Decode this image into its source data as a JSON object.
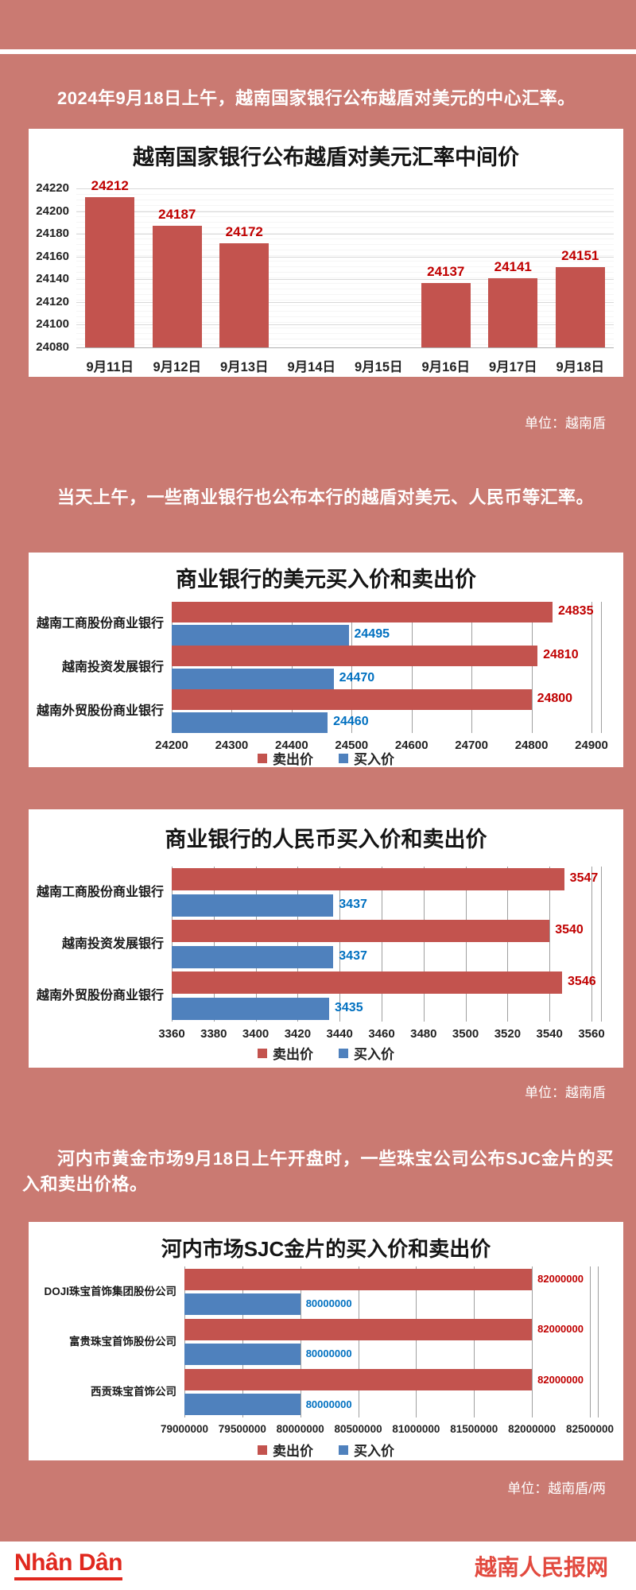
{
  "page": {
    "background_color": "#ca7a72",
    "paragraphs": {
      "intro_central_rate": "2024年9月18日上午，越南国家银行公布越盾对美元的中心汇率。",
      "intro_commercial_banks": "当天上午，一些商业银行也公布本行的越盾对美元、人民币等汇率。",
      "intro_gold": "河内市黄金市场9月18日上午开盘时，一些珠宝公司公布SJC金片的买入和卖出价格。"
    },
    "unit_notes": {
      "after_chart1": "单位：越南盾",
      "after_chart3": "单位：越南盾",
      "after_chart4": "单位：越南盾/两"
    }
  },
  "footer": {
    "logo_text": "Nhân Dân",
    "site_name": "越南人民报网",
    "logo_color": "#e0281e",
    "site_name_color": "#e24a3f"
  },
  "chart_data": [
    {
      "type": "bar",
      "title": "越南国家银行公布越盾对美元汇率中间价",
      "categories": [
        "9月11日",
        "9月12日",
        "9月13日",
        "9月14日",
        "9月15日",
        "9月16日",
        "9月17日",
        "9月18日"
      ],
      "values": [
        24212,
        24187,
        24172,
        null,
        null,
        24137,
        24141,
        24151
      ],
      "ylim": [
        24080,
        24220
      ],
      "ytick_step": 20,
      "bar_color": "#c3534e",
      "label_color": "#c00000",
      "grid": true,
      "unit": "越南盾"
    },
    {
      "type": "bar-horizontal",
      "title": "商业银行的美元买入价和卖出价",
      "categories": [
        "越南工商股份商业银行",
        "越南投资发展银行",
        "越南外贸股份商业银行"
      ],
      "series": [
        {
          "name": "卖出价",
          "color": "#c3534e",
          "label_color": "#c00000",
          "values": [
            24835,
            24810,
            24800
          ]
        },
        {
          "name": "买入价",
          "color": "#4f81bd",
          "label_color": "#0070c0",
          "values": [
            24495,
            24470,
            24460
          ]
        }
      ],
      "xlim": [
        24200,
        24900
      ],
      "xtick_step": 100,
      "grid": true,
      "legend_position": "bottom",
      "unit": "越南盾"
    },
    {
      "type": "bar-horizontal",
      "title": "商业银行的人民币买入价和卖出价",
      "categories": [
        "越南工商股份商业银行",
        "越南投资发展银行",
        "越南外贸股份商业银行"
      ],
      "series": [
        {
          "name": "卖出价",
          "color": "#c3534e",
          "label_color": "#c00000",
          "values": [
            3547,
            3540,
            3546
          ]
        },
        {
          "name": "买入价",
          "color": "#4f81bd",
          "label_color": "#0070c0",
          "values": [
            3437,
            3437,
            3435
          ]
        }
      ],
      "xlim": [
        3360,
        3560
      ],
      "xtick_step": 20,
      "grid": true,
      "legend_position": "bottom",
      "unit": "越南盾"
    },
    {
      "type": "bar-horizontal",
      "title": "河内市场SJC金片的买入价和卖出价",
      "categories": [
        "DOJI珠宝首饰集团股份公司",
        "富贵珠宝首饰股份公司",
        "西贡珠宝首饰公司"
      ],
      "series": [
        {
          "name": "卖出价",
          "color": "#c3534e",
          "label_color": "#c00000",
          "values": [
            82000000,
            82000000,
            82000000
          ]
        },
        {
          "name": "买入价",
          "color": "#4f81bd",
          "label_color": "#0070c0",
          "values": [
            80000000,
            80000000,
            80000000
          ]
        }
      ],
      "xlim": [
        79000000,
        82500000
      ],
      "xtick_step": 500000,
      "grid": true,
      "legend_position": "bottom",
      "unit": "越南盾/两"
    }
  ]
}
